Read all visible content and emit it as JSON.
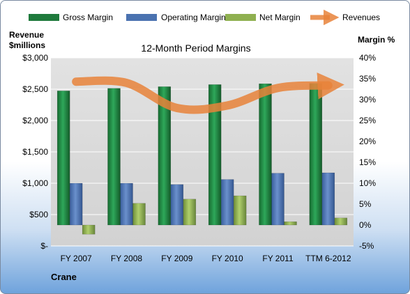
{
  "chart_data": {
    "type": "bar",
    "title": "12-Month Period Margins",
    "company": "Crane",
    "left_axis_title_line1": "Revenue",
    "left_axis_title_line2": "$millions",
    "right_axis_title": "Margin %",
    "categories": [
      "FY 2007",
      "FY 2008",
      "FY 2009",
      "FY 2010",
      "FY 2011",
      "TTM 6-2012"
    ],
    "left_ylim": [
      0,
      3000
    ],
    "left_ticks": [
      "$3,000",
      "$2,500",
      "$2,000",
      "$1,500",
      "$1,000",
      "$500",
      "$-"
    ],
    "right_ylim": [
      -5,
      40
    ],
    "right_ticks": [
      "40%",
      "35%",
      "30%",
      "25%",
      "20%",
      "15%",
      "10%",
      "5%",
      "0%",
      "-5%"
    ],
    "grid": true,
    "legend_position": "top",
    "series": [
      {
        "name": "Gross Margin",
        "axis": "right",
        "values": [
          32.1,
          32.7,
          33.1,
          33.6,
          33.8,
          33.9
        ],
        "color": "#1f7a3c"
      },
      {
        "name": "Operating Margin",
        "axis": "right",
        "values": [
          10.0,
          10.0,
          9.7,
          10.9,
          12.4,
          12.5
        ],
        "color": "#4a72b0"
      },
      {
        "name": "Net Margin",
        "axis": "right",
        "values": [
          -2.2,
          5.2,
          6.2,
          7.0,
          0.8,
          1.7
        ],
        "color": "#8fb050"
      },
      {
        "name": "Revenues",
        "axis": "left",
        "type": "line",
        "values": [
          2620,
          2600,
          2200,
          2240,
          2520,
          2560
        ],
        "color": "#e8823a"
      }
    ]
  }
}
